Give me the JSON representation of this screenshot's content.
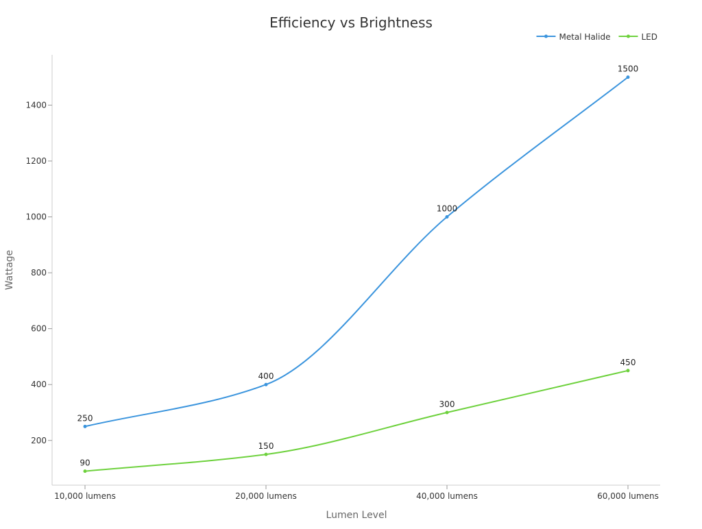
{
  "chart_data": {
    "type": "line",
    "title": "Efficiency vs Brightness",
    "xlabel": "Lumen Level",
    "ylabel": "Wattage",
    "categories": [
      "10,000 lumens",
      "20,000 lumens",
      "40,000 lumens",
      "60,000 lumens"
    ],
    "ylim": [
      40,
      1580
    ],
    "yticks": [
      200,
      400,
      600,
      800,
      1000,
      1200,
      1400
    ],
    "grid": false,
    "legend_position": "top-right",
    "series": [
      {
        "name": "Metal Halide",
        "color": "#3a94dd",
        "values": [
          250,
          400,
          1000,
          1500
        ]
      },
      {
        "name": "LED",
        "color": "#6dd13c",
        "values": [
          90,
          150,
          300,
          450
        ]
      }
    ]
  }
}
